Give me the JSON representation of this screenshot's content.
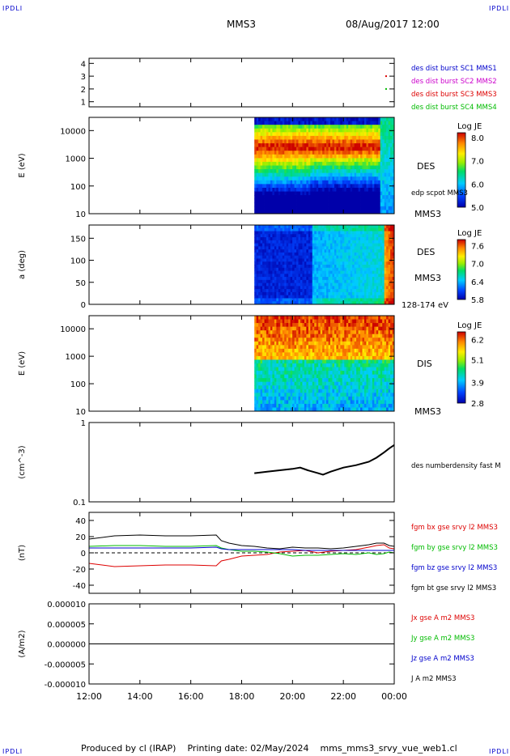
{
  "corners": {
    "top_left": "IPDLI",
    "top_right": "IPDLI",
    "bottom_left": "IPDLI",
    "bottom_right": "IPDLI"
  },
  "header": {
    "spacecraft": "MMS3",
    "date": "08/Aug/2017 12:00"
  },
  "footer": {
    "producer": "Produced by cl (IRAP)",
    "printing_date": "Printing date: 02/May/2024",
    "script": "mms_mms3_srvy_vue_web1.cl"
  },
  "time_axis": {
    "ticks": [
      "12:00",
      "14:00",
      "16:00",
      "18:00",
      "20:00",
      "22:00",
      "00:00"
    ],
    "range_hours": [
      12,
      24
    ]
  },
  "colors": {
    "mms1": "#0000cc",
    "mms2": "#cc00cc",
    "mms3": "#dd0000",
    "mms4": "#00bb00",
    "bx": "#dd0000",
    "by": "#00bb00",
    "bz": "#0000cc",
    "bt": "#000000"
  },
  "chart_data": [
    {
      "type": "scatter",
      "panel": "burst",
      "yticks": [
        "4",
        "3",
        "2",
        "1"
      ],
      "ylim": [
        0.6,
        4.4
      ],
      "series": [
        {
          "name": "des dist burst SC1 MMS1",
          "color": "#0000cc",
          "points": []
        },
        {
          "name": "des dist burst SC2 MMS2",
          "color": "#cc00cc",
          "points": []
        },
        {
          "name": "des dist burst SC3 MMS3",
          "color": "#dd0000",
          "points": [
            [
              23.68,
              3
            ]
          ]
        },
        {
          "name": "des dist burst SC4 MMS4",
          "color": "#00bb00",
          "points": [
            [
              23.68,
              2
            ]
          ]
        }
      ]
    },
    {
      "type": "heatmap",
      "panel": "des_energy",
      "ylabel": "E (eV)",
      "yticks": [
        "10000",
        "1000",
        "100",
        "10"
      ],
      "ylog": [
        10,
        30000
      ],
      "data_start_hour": 18.5,
      "label": "DES",
      "sublabel": "MMS3",
      "overlay_label": "edp scpot MMS3",
      "colorbar": {
        "title": "Log JE",
        "ticks": [
          "8.0",
          "7.0",
          "6.0",
          "5.0"
        ],
        "range": [
          5.0,
          8.2
        ]
      }
    },
    {
      "type": "heatmap",
      "panel": "des_pitch",
      "ylabel": "a (deg)",
      "yticks": [
        "150",
        "100",
        "50",
        "0"
      ],
      "ylim": [
        0,
        180
      ],
      "data_start_hour": 18.5,
      "label": "DES",
      "sublabel": "MMS3",
      "energy_band": "128-174 eV",
      "colorbar": {
        "title": "Log JE",
        "ticks": [
          "7.6",
          "7.0",
          "6.4",
          "5.8"
        ],
        "range": [
          5.8,
          7.8
        ]
      }
    },
    {
      "type": "heatmap",
      "panel": "dis_energy",
      "ylabel": "E (eV)",
      "yticks": [
        "10000",
        "1000",
        "100",
        "10"
      ],
      "ylog": [
        10,
        30000
      ],
      "data_start_hour": 18.5,
      "label": "DIS",
      "sublabel": "MMS3",
      "colorbar": {
        "title": "Log JE",
        "ticks": [
          "6.2",
          "5.1",
          "3.9",
          "2.8"
        ],
        "range": [
          2.8,
          6.6
        ]
      }
    },
    {
      "type": "line",
      "panel": "density",
      "ylabel": "(cm^-3)",
      "yticks": [
        "1.0",
        "0.1"
      ],
      "ylog": [
        0.1,
        1.0
      ],
      "series": [
        {
          "name": "des numberdensity fast M",
          "color": "#000000",
          "x": [
            18.5,
            19.0,
            19.5,
            20.0,
            20.3,
            20.6,
            21.0,
            21.2,
            21.5,
            22.0,
            22.5,
            23.0,
            23.3,
            23.6,
            23.8,
            24.0
          ],
          "y": [
            0.23,
            0.24,
            0.25,
            0.26,
            0.27,
            0.25,
            0.23,
            0.22,
            0.24,
            0.27,
            0.29,
            0.32,
            0.36,
            0.42,
            0.47,
            0.52
          ]
        }
      ]
    },
    {
      "type": "line",
      "panel": "bfield",
      "ylabel": "(nT)",
      "yticks": [
        "40",
        "20",
        "0",
        "-20",
        "-40"
      ],
      "ylim": [
        -50,
        50
      ],
      "x": [
        12,
        13,
        14,
        15,
        16,
        17,
        17.2,
        17.5,
        18,
        18.5,
        19,
        19.5,
        20,
        20.5,
        21,
        21.5,
        22,
        22.5,
        23,
        23.3,
        23.6,
        23.8,
        24
      ],
      "series": [
        {
          "name": "fgm bx gse srvy l2 MMS3",
          "color": "#dd0000",
          "y": [
            -13,
            -17,
            -16,
            -15,
            -15,
            -16,
            -10,
            -8,
            -4,
            -3,
            -2,
            1,
            2,
            3,
            0,
            2,
            3,
            4,
            7,
            9,
            10,
            6,
            5
          ]
        },
        {
          "name": "fgm by gse srvy l2 MMS3",
          "color": "#00bb00",
          "y": [
            8,
            9,
            9,
            8,
            8,
            9,
            6,
            4,
            2,
            2,
            1,
            -1,
            -4,
            -3,
            -3,
            -2,
            -1,
            -2,
            0,
            -2,
            -1,
            1,
            0
          ]
        },
        {
          "name": "fgm bz gse srvy l2 MMS3",
          "color": "#0000cc",
          "y": [
            6,
            6,
            6,
            6,
            6,
            7,
            5,
            4,
            4,
            4,
            4,
            4,
            4,
            3,
            3,
            3,
            3,
            3,
            3,
            3,
            3,
            3,
            3
          ]
        },
        {
          "name": "fgm bt gse srvy l2 MMS3",
          "color": "#000000",
          "y": [
            17,
            21,
            22,
            21,
            21,
            22,
            15,
            12,
            9,
            8,
            6,
            5,
            7,
            6,
            6,
            5,
            6,
            8,
            10,
            12,
            12,
            9,
            8
          ]
        }
      ]
    },
    {
      "type": "line",
      "panel": "current",
      "ylabel": "(A/m2)",
      "yticks": [
        "0.000010",
        "0.000005",
        "0.000000",
        "-0.000005",
        "-0.000010"
      ],
      "ylim": [
        -1e-05,
        1e-05
      ],
      "x": [
        12,
        24
      ],
      "series": [
        {
          "name": "Jx gse A m2 MMS3",
          "color": "#dd0000",
          "y": [
            0,
            0
          ]
        },
        {
          "name": "Jy gse A m2 MMS3",
          "color": "#00bb00",
          "y": [
            0,
            0
          ]
        },
        {
          "name": "Jz gse A m2 MMS3",
          "color": "#0000cc",
          "y": [
            0,
            0
          ]
        },
        {
          "name": "J A m2 MMS3",
          "color": "#000000",
          "y": [
            0,
            0
          ]
        }
      ]
    }
  ]
}
